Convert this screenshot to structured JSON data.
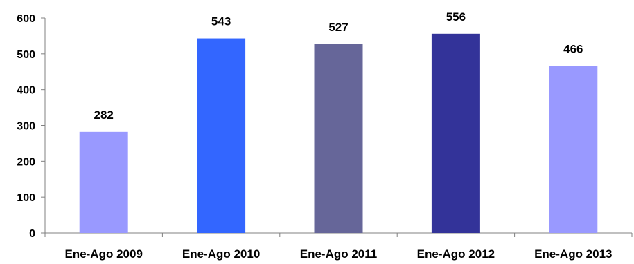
{
  "chart_data": {
    "type": "bar",
    "title": "",
    "xlabel": "",
    "ylabel": "",
    "categories": [
      "Ene-Ago 2009",
      "Ene-Ago 2010",
      "Ene-Ago 2011",
      "Ene-Ago 2012",
      "Ene-Ago 2013"
    ],
    "values": [
      282,
      543,
      527,
      556,
      466
    ],
    "data_labels": [
      "282",
      "543",
      "527",
      "556",
      "466"
    ],
    "bar_colors": [
      "#9999ff",
      "#3366ff",
      "#666699",
      "#333399",
      "#9999ff"
    ],
    "ylim": [
      0,
      600
    ],
    "y_ticks": [
      0,
      100,
      200,
      300,
      400,
      500,
      600
    ],
    "y_tick_labels": [
      "0",
      "100",
      "200",
      "300",
      "400",
      "500",
      "600"
    ],
    "grid": false,
    "legend": "none",
    "axis_color": "#808080"
  }
}
